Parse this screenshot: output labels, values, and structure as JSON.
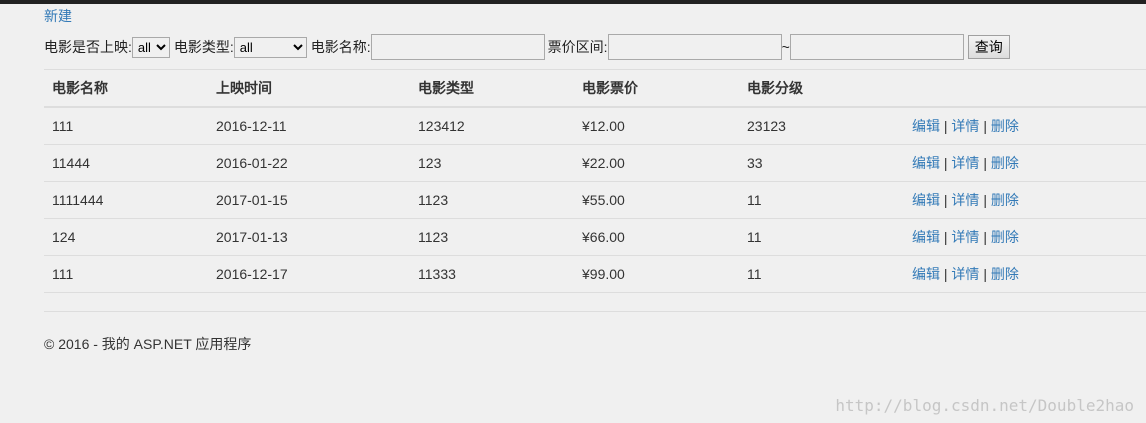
{
  "new_link": "新建",
  "filter": {
    "released_label": "电影是否上映:",
    "released_value": "all",
    "type_label": "电影类型:",
    "type_value": "all",
    "name_label": "电影名称:",
    "name_value": "",
    "price_label": "票价区间:",
    "price_min": "",
    "price_sep": "~",
    "price_max": "",
    "search_button": "查询"
  },
  "table": {
    "headers": [
      "电影名称",
      "上映时间",
      "电影类型",
      "电影票价",
      "电影分级",
      ""
    ],
    "actions": {
      "edit": "编辑",
      "details": "详情",
      "delete": "删除",
      "sep": "|"
    },
    "rows": [
      [
        "111",
        "2016-12-11",
        "123412",
        "¥12.00",
        "23123"
      ],
      [
        "11444",
        "2016-01-22",
        "123",
        "¥22.00",
        "33"
      ],
      [
        "1111444",
        "2017-01-15",
        "1123",
        "¥55.00",
        "11"
      ],
      [
        "124",
        "2017-01-13",
        "1123",
        "¥66.00",
        "11"
      ],
      [
        "111",
        "2016-12-17",
        "11333",
        "¥99.00",
        "11"
      ]
    ]
  },
  "footer": "© 2016 - 我的 ASP.NET 应用程序",
  "watermark": "http://blog.csdn.net/Double2hao"
}
